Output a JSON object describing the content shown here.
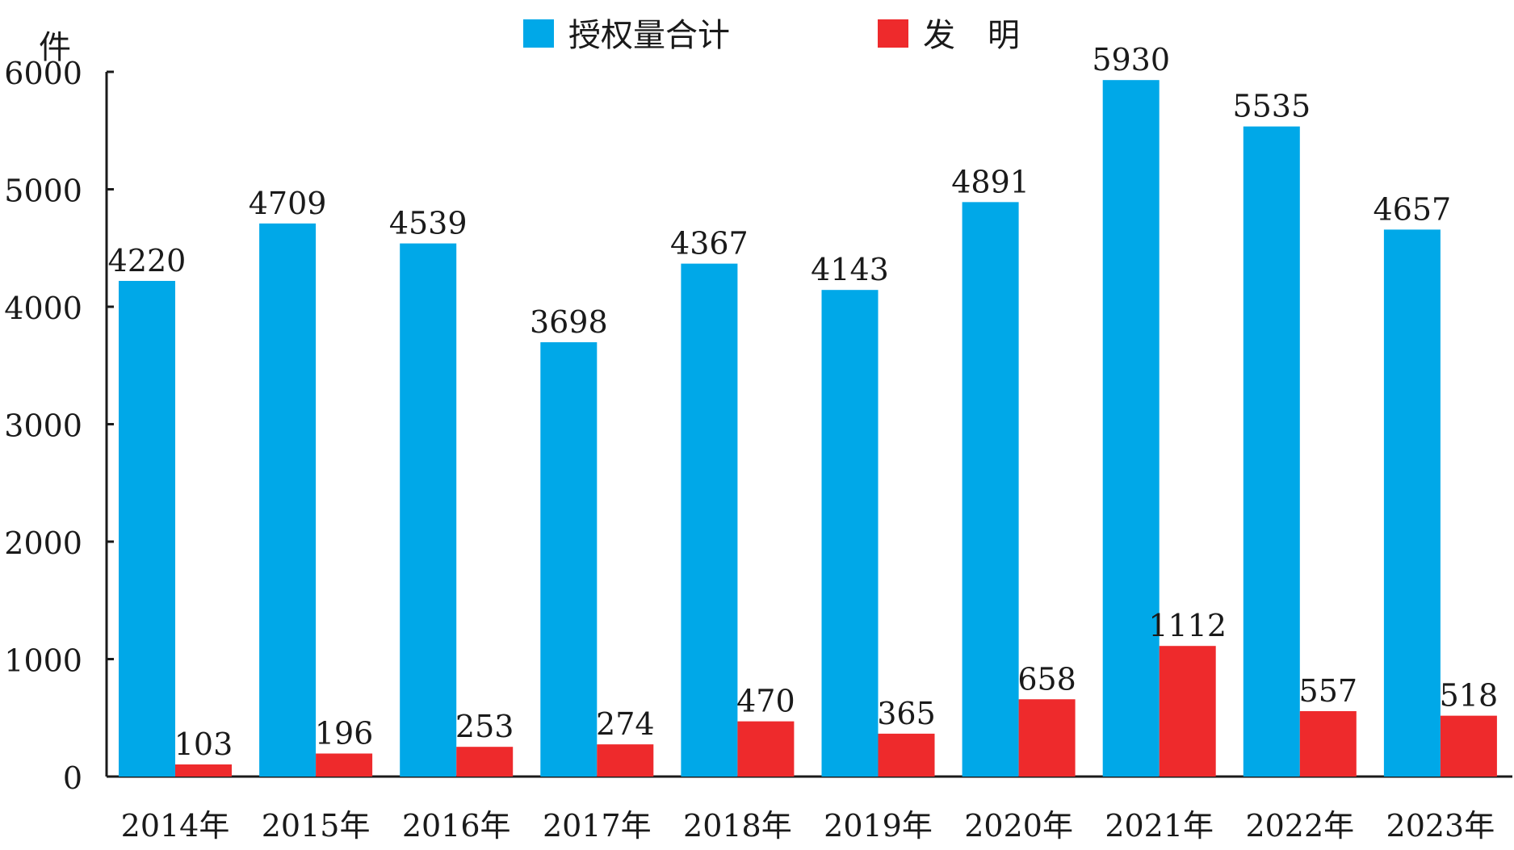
{
  "chart_data": {
    "type": "bar",
    "ylabel": "件",
    "ylim": [
      0,
      6000
    ],
    "yticks": [
      "0",
      "1000",
      "2000",
      "3000",
      "4000",
      "5000",
      "6000"
    ],
    "grid": false,
    "legend_position": "top-center",
    "categories": [
      "2014年",
      "2015年",
      "2016年",
      "2017年",
      "2018年",
      "2019年",
      "2020年",
      "2021年",
      "2022年",
      "2023年"
    ],
    "series": [
      {
        "name": "授权量合计",
        "color": "#00a8e8",
        "values": [
          4220,
          4709,
          4539,
          3698,
          4367,
          4143,
          4891,
          5930,
          5535,
          4657
        ]
      },
      {
        "name": "发　明",
        "color": "#ee2a2c",
        "values": [
          103,
          196,
          253,
          274,
          470,
          365,
          658,
          1112,
          557,
          518
        ]
      }
    ]
  }
}
